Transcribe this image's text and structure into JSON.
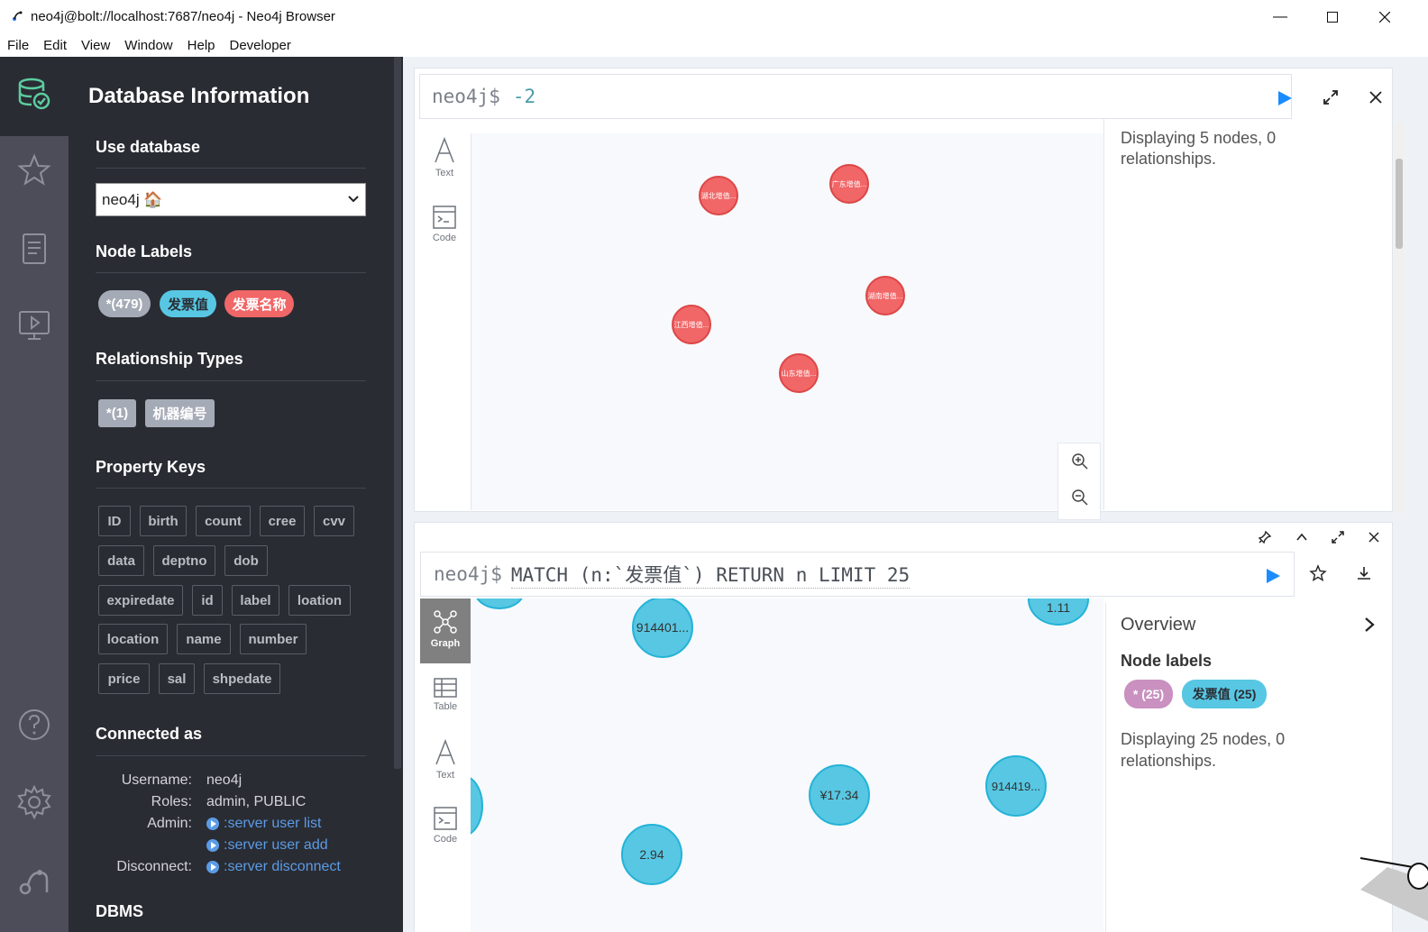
{
  "window": {
    "title": "neo4j@bolt://localhost:7687/neo4j - Neo4j Browser",
    "menu": [
      "File",
      "Edit",
      "View",
      "Window",
      "Help",
      "Developer"
    ]
  },
  "drawer": {
    "title": "Database Information",
    "use_database": {
      "heading": "Use database",
      "selected": "neo4j 🏠"
    },
    "node_labels": {
      "heading": "Node Labels",
      "items": [
        {
          "label": "*(479)",
          "color": "#a5abb6"
        },
        {
          "label": "发票值",
          "color": "#57c7e3"
        },
        {
          "label": "发票名称",
          "color": "#f16667"
        }
      ]
    },
    "relationship_types": {
      "heading": "Relationship Types",
      "items": [
        "*(1)",
        "机器编号"
      ]
    },
    "property_keys": {
      "heading": "Property Keys",
      "items": [
        "ID",
        "birth",
        "count",
        "cree",
        "cvv",
        "data",
        "deptno",
        "dob",
        "expiredate",
        "id",
        "label",
        "loation",
        "location",
        "name",
        "number",
        "price",
        "sal",
        "shpedate"
      ]
    },
    "connected_as": {
      "heading": "Connected as",
      "username_label": "Username:",
      "username": "neo4j",
      "roles_label": "Roles:",
      "roles": "admin, PUBLIC",
      "admin_label": "Admin:",
      "admin_links": [
        ":server user list",
        ":server user add"
      ],
      "disconnect_label": "Disconnect:",
      "disconnect_link": ":server disconnect"
    },
    "dbms_heading": "DBMS"
  },
  "frame1": {
    "prompt": "neo4j$",
    "query": "-2",
    "tabs": [
      {
        "label": "Text"
      },
      {
        "label": "Code"
      }
    ],
    "summary": "Displaying 5 nodes, 0 relationships.",
    "nodes": [
      "湖北增值...",
      "广东增值...",
      "湖南增值...",
      "江西增值...",
      "山东增值..."
    ]
  },
  "frame2": {
    "prompt": "neo4j$",
    "query": "MATCH (n:`发票值`) RETURN n LIMIT 25",
    "tabs": [
      {
        "label": "Graph"
      },
      {
        "label": "Table"
      },
      {
        "label": "Text"
      },
      {
        "label": "Code"
      }
    ],
    "overview_title": "Overview",
    "node_labels_title": "Node labels",
    "labels": [
      {
        "label": "* (25)",
        "color": "#c990c0"
      },
      {
        "label": "发票值 (25)",
        "color": "#57c7e3"
      }
    ],
    "summary": "Displaying 25 nodes, 0 relationships.",
    "nodes": [
      "914401...",
      "¥17.34",
      "914419...",
      "2.94",
      "1.11"
    ]
  }
}
